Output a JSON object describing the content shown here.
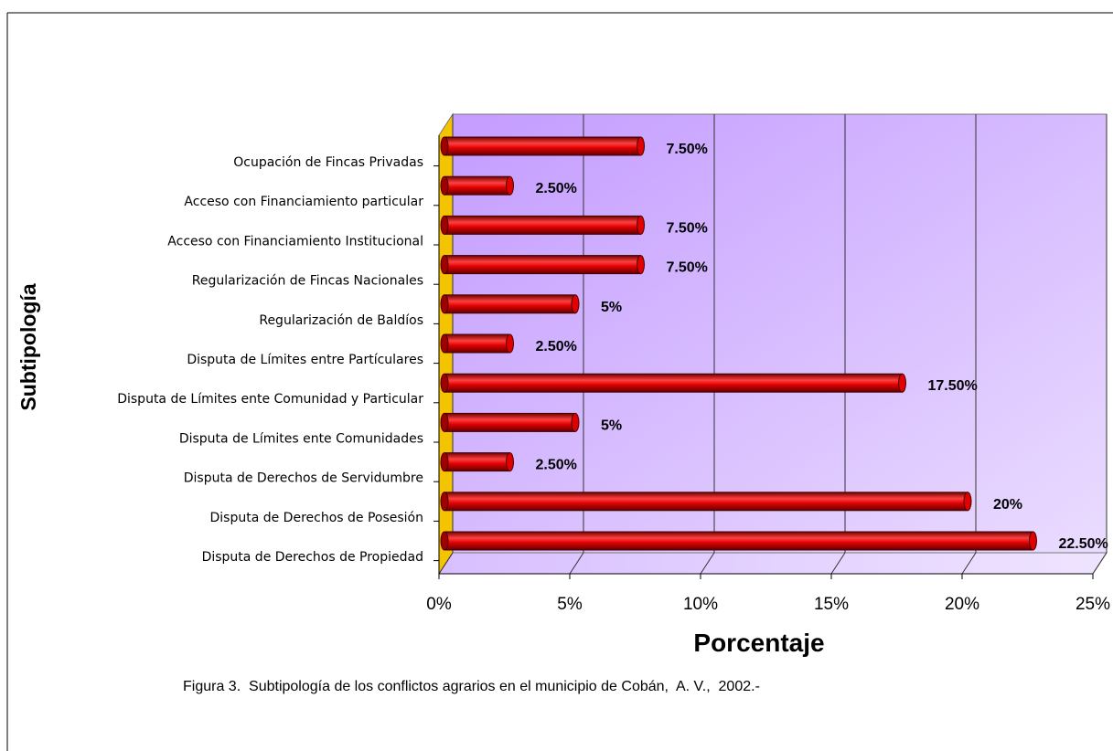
{
  "chart_data": {
    "type": "bar",
    "orientation": "horizontal",
    "xlabel": "Porcentaje",
    "ylabel": "Subtipología",
    "caption": "Figura 3.  Subtipología de los conflictos agrarios en el municipio de Cobán,  A. V.,  2002.-",
    "categories": [
      "Ocupación de Fincas Privadas",
      "Acceso con Financiamiento particular",
      "Acceso con Financiamiento Institucional",
      "Regularización de Fincas Nacionales",
      "Regularización de Baldíos",
      "Disputa de Límites entre Partículares",
      "Disputa de Límites ente Comunidad y Particular",
      "Disputa de Límites ente Comunidades",
      "Disputa de Derechos de Servidumbre",
      "Disputa de Derechos de Posesión",
      "Disputa de Derechos de Propiedad"
    ],
    "values": [
      7.5,
      2.5,
      7.5,
      7.5,
      5,
      2.5,
      17.5,
      5,
      2.5,
      20,
      22.5
    ],
    "value_labels": [
      "7.50%",
      "2.50%",
      "7.50%",
      "7.50%",
      "5%",
      "2.50%",
      "17.50%",
      "5%",
      "2.50%",
      "20%",
      "22.50%"
    ],
    "color": "#e00000",
    "xlim": [
      0,
      25
    ],
    "xticks": [
      {
        "value": 0,
        "label": "0%"
      },
      {
        "value": 5,
        "label": "5%"
      },
      {
        "value": 10,
        "label": "10%"
      },
      {
        "value": 15,
        "label": "15%"
      },
      {
        "value": 20,
        "label": "20%"
      },
      {
        "value": 25,
        "label": "25%"
      }
    ],
    "grid": true
  }
}
